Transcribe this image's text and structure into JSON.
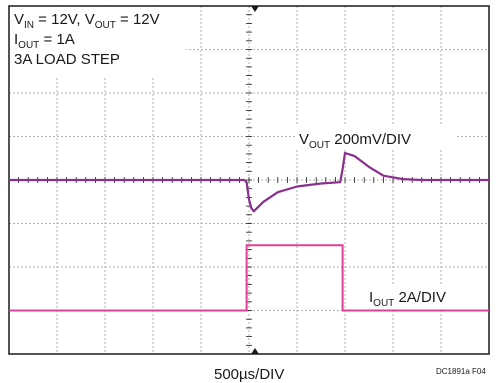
{
  "annotations": {
    "line1_vin_main": "V",
    "line1_vin_sub": "IN",
    "line1_vin_rest": " = 12V, V",
    "line1_vout_sub": "OUT",
    "line1_vout_rest": " = 12V",
    "line2_main": "I",
    "line2_sub": "OUT",
    "line2_rest": " = 1A",
    "line3": "3A LOAD STEP"
  },
  "traces": {
    "vout_main": "V",
    "vout_sub": "OUT",
    "vout_rest": " 200mV/DIV",
    "iout_main": "I",
    "iout_sub": "OUT",
    "iout_rest": " 2A/DIV"
  },
  "footer": {
    "time_scale": "500µs/DIV",
    "figure_code": "DC1891a F04"
  },
  "chart_data": {
    "type": "line",
    "grid": true,
    "x_divisions": 10,
    "y_divisions": 8,
    "series": [
      {
        "name": "VOUT 200mV/DIV",
        "color": "#8a2f8e",
        "x_div": [
          0,
          4.9,
          4.95,
          5.0,
          5.05,
          5.1,
          5.3,
          5.6,
          6.0,
          6.5,
          6.9,
          6.95,
          7.0,
          7.2,
          7.5,
          7.8,
          8.2,
          8.6,
          10
        ],
        "y_div": [
          0,
          0,
          -0.05,
          -0.45,
          -0.65,
          -0.72,
          -0.5,
          -0.28,
          -0.15,
          -0.08,
          -0.05,
          0.25,
          0.62,
          0.55,
          0.3,
          0.1,
          0.02,
          0,
          0
        ]
      },
      {
        "name": "IOUT 2A/DIV",
        "color": "#e0409a",
        "x_div": [
          0,
          4.95,
          4.95,
          6.95,
          6.95,
          10
        ],
        "y_div": [
          -3.0,
          -3.0,
          -1.5,
          -1.5,
          -3.0,
          -3.0
        ]
      }
    ]
  }
}
